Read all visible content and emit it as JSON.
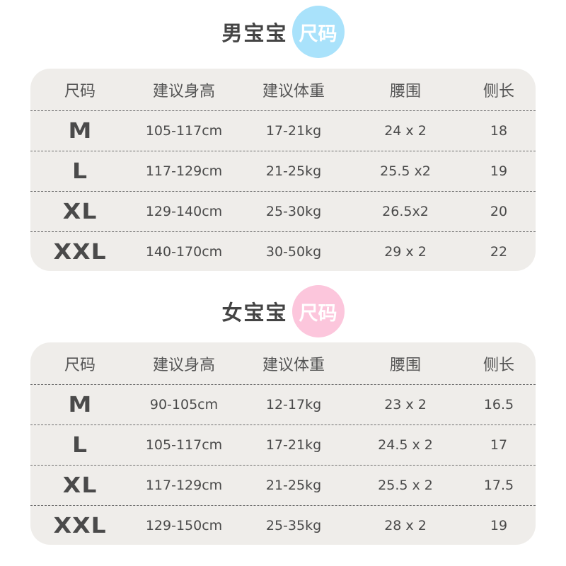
{
  "colors": {
    "boy_badge": "#a9e2fb",
    "girl_badge": "#fcc6dc",
    "panel": "#efedea",
    "text": "#4a4a4a"
  },
  "headers": [
    "尺码",
    "建议身高",
    "建议体重",
    "腰围",
    "侧长"
  ],
  "boy": {
    "title": "男宝宝",
    "badge": "尺码",
    "rows": [
      [
        "M",
        "105-117cm",
        "17-21kg",
        "24 x 2",
        "18"
      ],
      [
        "L",
        "117-129cm",
        "21-25kg",
        "25.5 x2",
        "19"
      ],
      [
        "XL",
        "129-140cm",
        "25-30kg",
        "26.5x2",
        "20"
      ],
      [
        "XXL",
        "140-170cm",
        "30-50kg",
        "29 x 2",
        "22"
      ]
    ]
  },
  "girl": {
    "title": "女宝宝",
    "badge": "尺码",
    "rows": [
      [
        "M",
        "90-105cm",
        "12-17kg",
        "23 x 2",
        "16.5"
      ],
      [
        "L",
        "105-117cm",
        "17-21kg",
        "24.5 x 2",
        "17"
      ],
      [
        "XL",
        "117-129cm",
        "21-25kg",
        "25.5 x 2",
        "17.5"
      ],
      [
        "XXL",
        "129-150cm",
        "25-35kg",
        "28 x 2",
        "19"
      ]
    ]
  }
}
